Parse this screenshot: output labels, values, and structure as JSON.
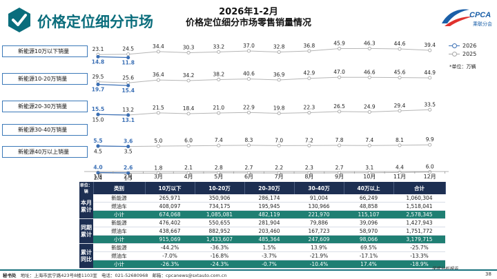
{
  "header": {
    "title": "价格定位细分市场",
    "chart_title_line1": "2026年1-2月",
    "chart_title_line2": "价格定位细分市场零售销量情况",
    "logo_text": "CPCA",
    "logo_subtext": "乘联分会"
  },
  "legend": {
    "items": [
      {
        "label": "2026",
        "color": "#3a6fb5"
      },
      {
        "label": "2025",
        "color": "#a6a6a6"
      }
    ],
    "unit_note": "*单位：万辆"
  },
  "chart_data": {
    "type": "line",
    "categories": [
      "1月",
      "2月",
      "3月",
      "4月",
      "5月",
      "6月",
      "7月",
      "8月",
      "9月",
      "10月",
      "11月",
      "12月"
    ],
    "panels": [
      {
        "label": "新能源10万以下销量",
        "series": [
          {
            "name": "2026",
            "values": [
              14.8,
              11.8
            ]
          },
          {
            "name": "2025",
            "values": [
              23.1,
              24.5,
              34.4,
              30.3,
              33.2,
              37.0,
              32.8,
              36.8,
              45.9,
              46.3,
              44.6,
              39.4
            ]
          }
        ]
      },
      {
        "label": "新能源10-20万销量",
        "series": [
          {
            "name": "2026",
            "values": [
              19.7,
              15.4
            ]
          },
          {
            "name": "2025",
            "values": [
              29.5,
              25.6,
              36.4,
              34.2,
              38.2,
              40.6,
              36.9,
              42.9,
              47.0,
              46.6,
              45.6,
              44.9
            ]
          }
        ]
      },
      {
        "label": "新能源20-30万销量",
        "series": [
          {
            "name": "2026",
            "values": [
              15.5,
              13.1
            ]
          },
          {
            "name": "2025",
            "values": [
              15.0,
              13.2,
              21.5,
              18.4,
              21.0,
              22.9,
              19.8,
              22.3,
              26.5,
              24.9,
              29.4,
              33.5
            ]
          }
        ]
      },
      {
        "label": "新能源30-40万销量",
        "series": [
          {
            "name": "2026",
            "values": [
              5.5,
              3.6
            ]
          },
          {
            "name": "2025",
            "values": [
              4.5,
              3.5,
              5.0,
              6.0,
              7.4,
              8.3,
              7.0,
              7.2,
              7.8,
              7.4,
              8.1,
              9.9
            ]
          }
        ]
      },
      {
        "label": "新能源40万以上销量",
        "series": [
          {
            "name": "2026",
            "values": [
              4.0,
              2.6
            ]
          },
          {
            "name": "2025",
            "values": [
              2.4,
              1.5,
              1.8,
              2.1,
              2.8,
              2.7,
              2.2,
              2.3,
              2.7,
              3.1,
              4.4,
              6.0
            ]
          }
        ]
      }
    ]
  },
  "table": {
    "unit_header": "单位：辆",
    "headers": [
      "类别",
      "10万以下",
      "10-20万",
      "20-30万",
      "30-40万",
      "40万以上",
      "合计"
    ],
    "groups": [
      {
        "name": "本月累计",
        "rows": [
          {
            "label": "新能源",
            "values": [
              "265,971",
              "350,906",
              "286,174",
              "91,004",
              "66,249",
              "1,060,304"
            ]
          },
          {
            "label": "燃油车",
            "values": [
              "408,097",
              "734,175",
              "195,945",
              "130,966",
              "48,858",
              "1,518,041"
            ]
          },
          {
            "label": "小计",
            "values": [
              "674,068",
              "1,085,081",
              "482,119",
              "221,970",
              "115,107",
              "2,578,345"
            ],
            "subtotal": true
          }
        ]
      },
      {
        "name": "同期累计",
        "rows": [
          {
            "label": "新能源",
            "values": [
              "476,402",
              "550,655",
              "281,904",
              "79,886",
              "39,096",
              "1,427,943"
            ]
          },
          {
            "label": "燃油车",
            "values": [
              "438,667",
              "882,952",
              "203,460",
              "167,723",
              "58,970",
              "1,751,772"
            ]
          },
          {
            "label": "小计",
            "values": [
              "915,069",
              "1,433,607",
              "485,364",
              "247,609",
              "98,066",
              "3,179,715"
            ],
            "subtotal": true
          }
        ]
      },
      {
        "name": "累计同比",
        "rows": [
          {
            "label": "新能源",
            "values": [
              "-44.2%",
              "-36.3%",
              "1.5%",
              "13.9%",
              "69.5%",
              "-25.7%"
            ]
          },
          {
            "label": "燃油车",
            "values": [
              "-7.0%",
              "-16.8%",
              "-3.7%",
              "-21.9%",
              "-17.1%",
              "-13.3%"
            ]
          },
          {
            "label": "小计",
            "values": [
              "-26.3%",
              "-24.3%",
              "-0.7%",
              "-10.4%",
              "17.4%",
              "-18.9%"
            ],
            "subtotal": true
          }
        ]
      }
    ]
  },
  "footer": {
    "secretariat_label": "秘书处",
    "address": "地址：上海市武宁路423号8楼1103室",
    "phone": "电话：021-52680968",
    "email": "邮箱：cpcanews@sxtauto.com.cn",
    "report_tag": "深度分析报告",
    "page_number": "38"
  },
  "colors": {
    "brand": "#0a6d7c",
    "navy": "#1d2f52",
    "teal_row": "#1f7f73",
    "series_2026": "#3a6fb5",
    "series_2025": "#a6a6a6"
  }
}
